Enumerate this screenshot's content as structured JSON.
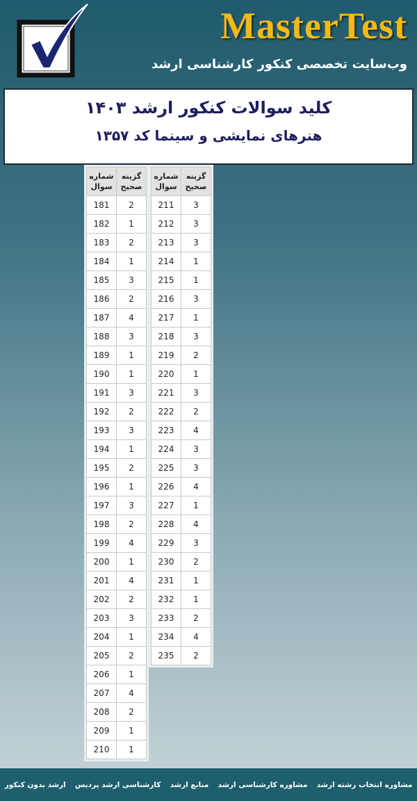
{
  "header": {
    "brand": "MasterTest",
    "tagline": "وب‌سایت تخصصی کنکور کارشناسی ارشد"
  },
  "title": {
    "line1": "کلید سوالات کنکور ارشد ۱۴۰۳",
    "line2": "هنرهای نمایشی و سینما کد ۱۳۵۷"
  },
  "tables": [
    {
      "columns": [
        "شماره سوال",
        "گزینه صحیح"
      ],
      "rows": [
        [
          181,
          2
        ],
        [
          182,
          1
        ],
        [
          183,
          2
        ],
        [
          184,
          1
        ],
        [
          185,
          3
        ],
        [
          186,
          2
        ],
        [
          187,
          4
        ],
        [
          188,
          3
        ],
        [
          189,
          1
        ],
        [
          190,
          1
        ],
        [
          191,
          3
        ],
        [
          192,
          2
        ],
        [
          193,
          3
        ],
        [
          194,
          1
        ],
        [
          195,
          2
        ],
        [
          196,
          1
        ],
        [
          197,
          3
        ],
        [
          198,
          2
        ],
        [
          199,
          4
        ],
        [
          200,
          1
        ],
        [
          201,
          4
        ],
        [
          202,
          2
        ],
        [
          203,
          3
        ],
        [
          204,
          1
        ],
        [
          205,
          2
        ],
        [
          206,
          1
        ],
        [
          207,
          4
        ],
        [
          208,
          2
        ],
        [
          209,
          1
        ],
        [
          210,
          1
        ]
      ]
    },
    {
      "columns": [
        "شماره سوال",
        "گزینه صحیح"
      ],
      "rows": [
        [
          211,
          3
        ],
        [
          212,
          3
        ],
        [
          213,
          3
        ],
        [
          214,
          1
        ],
        [
          215,
          1
        ],
        [
          216,
          3
        ],
        [
          217,
          1
        ],
        [
          218,
          3
        ],
        [
          219,
          2
        ],
        [
          220,
          1
        ],
        [
          221,
          3
        ],
        [
          222,
          2
        ],
        [
          223,
          4
        ],
        [
          224,
          3
        ],
        [
          225,
          3
        ],
        [
          226,
          4
        ],
        [
          227,
          1
        ],
        [
          228,
          4
        ],
        [
          229,
          3
        ],
        [
          230,
          2
        ],
        [
          231,
          1
        ],
        [
          232,
          1
        ],
        [
          233,
          2
        ],
        [
          234,
          4
        ],
        [
          235,
          2
        ]
      ]
    }
  ],
  "footer": {
    "links": [
      "ارشد بدون کنکور",
      "کارشناسی ارشد پردیس",
      "منابع ارشد",
      "مشاوره کارشناسی ارشد",
      "مشاوره انتخاب رشته ارشد"
    ]
  }
}
